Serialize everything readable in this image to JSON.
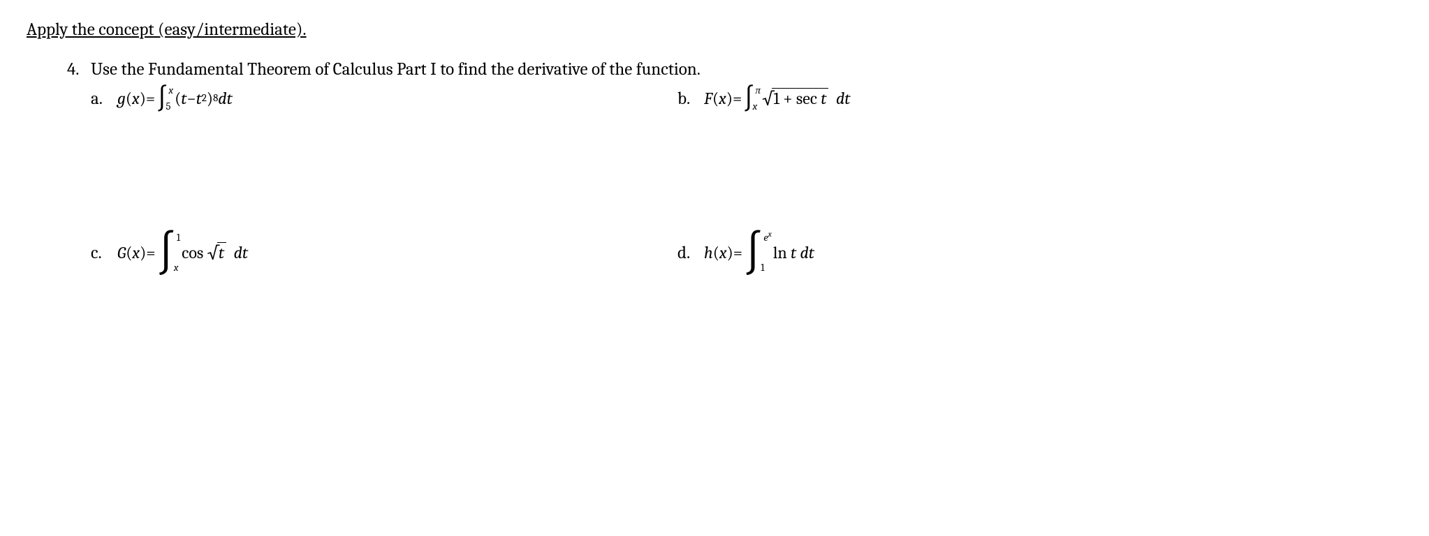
{
  "section_heading": "Apply the concept (easy/intermediate).",
  "problem": {
    "number": "4.",
    "text": "Use the Fundamental Theorem of Calculus Part I to find the derivative of the function."
  },
  "parts": {
    "a": {
      "label": "a.",
      "fn_name": "g",
      "fn_arg": "x",
      "int_lower": "5",
      "int_upper": "x",
      "integrand_base": "t",
      "integrand_minus": "t",
      "integrand_inner_exp": "2",
      "integrand_outer_exp": "8",
      "dvar": "dt"
    },
    "b": {
      "label": "b.",
      "fn_name": "F",
      "fn_arg": "x",
      "int_lower": "x",
      "int_upper": "π",
      "radicand_const": "1",
      "radicand_plus": "+ sec",
      "radicand_var": "t",
      "dvar": "dt"
    },
    "c": {
      "label": "c.",
      "fn_name": "G",
      "fn_arg": "x",
      "int_lower": "x",
      "int_upper": "1",
      "func": "cos",
      "radicand": "t",
      "dvar": "dt"
    },
    "d": {
      "label": "d.",
      "fn_name": "h",
      "fn_arg": "x",
      "int_lower": "1",
      "int_upper_base": "e",
      "int_upper_exp": "x",
      "func": "ln",
      "arg": "t",
      "dvar": "dt"
    }
  },
  "glyphs": {
    "integral": "∫",
    "radical": "√",
    "eq": " = ",
    "lparen": "(",
    "rparen": ")",
    "minus": " − "
  }
}
